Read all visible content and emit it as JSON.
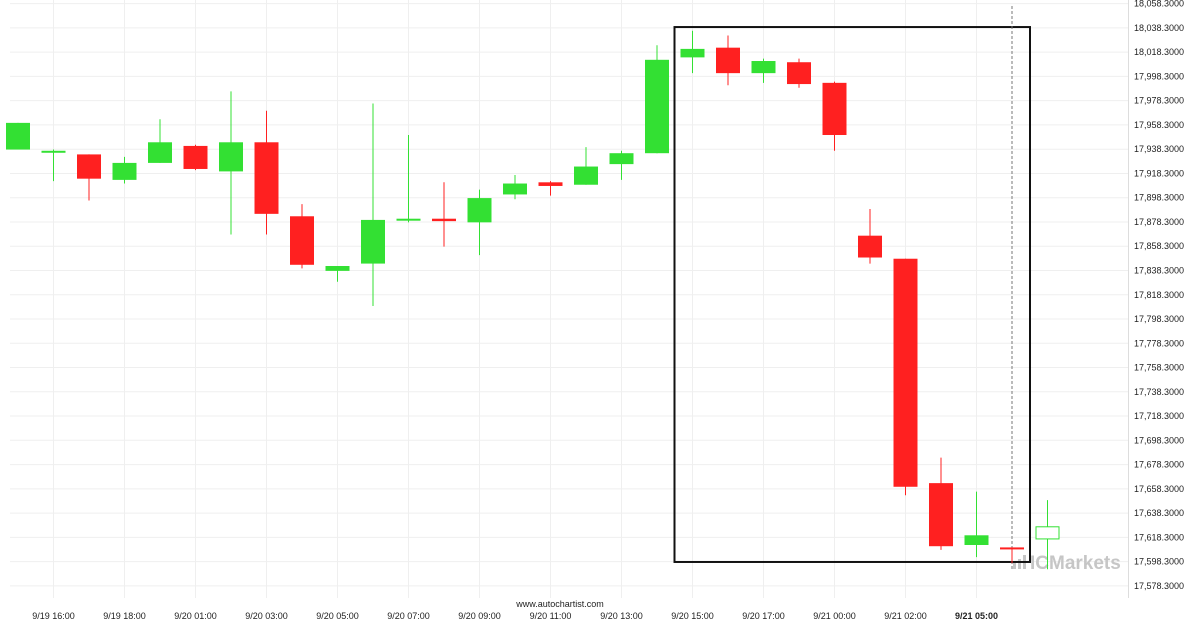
{
  "chart_data": {
    "type": "candlestick",
    "instrument": "",
    "y_range": [
      17568.3,
      18061.3
    ],
    "y_ticks": [
      "18,058.3000",
      "18,038.3000",
      "18,018.3000",
      "17,998.3000",
      "17,978.3000",
      "17,958.3000",
      "17,938.3000",
      "17,918.3000",
      "17,898.3000",
      "17,878.3000",
      "17,858.3000",
      "17,838.3000",
      "17,818.3000",
      "17,798.3000",
      "17,778.3000",
      "17,758.3000",
      "17,738.3000",
      "17,718.3000",
      "17,698.3000",
      "17,678.3000",
      "17,658.3000",
      "17,638.3000",
      "17,618.3000",
      "17,598.3000",
      "17,578.3000"
    ],
    "x_ticks": [
      {
        "label": "9/19 16:00",
        "index": 1,
        "bold": false
      },
      {
        "label": "9/19 18:00",
        "index": 3,
        "bold": false
      },
      {
        "label": "9/20 01:00",
        "index": 5,
        "bold": false
      },
      {
        "label": "9/20 03:00",
        "index": 7,
        "bold": false
      },
      {
        "label": "9/20 05:00",
        "index": 9,
        "bold": false
      },
      {
        "label": "9/20 07:00",
        "index": 11,
        "bold": false
      },
      {
        "label": "9/20 09:00",
        "index": 13,
        "bold": false
      },
      {
        "label": "9/20 11:00",
        "index": 15,
        "bold": false
      },
      {
        "label": "9/20 13:00",
        "index": 17,
        "bold": false
      },
      {
        "label": "9/20 15:00",
        "index": 19,
        "bold": false
      },
      {
        "label": "9/20 17:00",
        "index": 21,
        "bold": false
      },
      {
        "label": "9/21 00:00",
        "index": 23,
        "bold": false
      },
      {
        "label": "9/21 02:00",
        "index": 25,
        "bold": false
      },
      {
        "label": "9/21 05:00",
        "index": 27,
        "bold": true
      }
    ],
    "candles": [
      {
        "o": 17938.0,
        "h": 17960.0,
        "l": 17938.0,
        "c": 17960.0
      },
      {
        "o": 17936.0,
        "h": 17938.0,
        "l": 17912.0,
        "c": 17937.0
      },
      {
        "o": 17934.0,
        "h": 17934.0,
        "l": 17896.0,
        "c": 17914.0
      },
      {
        "o": 17913.0,
        "h": 17932.0,
        "l": 17910.0,
        "c": 17927.0
      },
      {
        "o": 17927.0,
        "h": 17963.0,
        "l": 17927.0,
        "c": 17944.0
      },
      {
        "o": 17941.0,
        "h": 17942.0,
        "l": 17921.0,
        "c": 17922.0
      },
      {
        "o": 17920.0,
        "h": 17986.0,
        "l": 17868.0,
        "c": 17944.0
      },
      {
        "o": 17944.0,
        "h": 17970.0,
        "l": 17868.0,
        "c": 17885.0
      },
      {
        "o": 17883.0,
        "h": 17893.0,
        "l": 17840.0,
        "c": 17843.0
      },
      {
        "o": 17838.0,
        "h": 17842.0,
        "l": 17829.0,
        "c": 17842.0
      },
      {
        "o": 17844.0,
        "h": 17976.0,
        "l": 17809.0,
        "c": 17880.0
      },
      {
        "o": 17880.0,
        "h": 17950.0,
        "l": 17878.0,
        "c": 17881.0
      },
      {
        "o": 17881.0,
        "h": 17911.0,
        "l": 17858.0,
        "c": 17879.0
      },
      {
        "o": 17878.0,
        "h": 17905.0,
        "l": 17851.0,
        "c": 17898.0
      },
      {
        "o": 17901.0,
        "h": 17917.0,
        "l": 17897.0,
        "c": 17910.0
      },
      {
        "o": 17911.0,
        "h": 17912.0,
        "l": 17900.0,
        "c": 17908.0
      },
      {
        "o": 17909.0,
        "h": 17940.0,
        "l": 17909.0,
        "c": 17924.0
      },
      {
        "o": 17926.0,
        "h": 17937.0,
        "l": 17913.0,
        "c": 17935.0
      },
      {
        "o": 17935.0,
        "h": 18024.0,
        "l": 17935.0,
        "c": 18012.0
      },
      {
        "o": 18014.0,
        "h": 18036.0,
        "l": 18001.0,
        "c": 18021.0
      },
      {
        "o": 18022.0,
        "h": 18032.0,
        "l": 17991.0,
        "c": 18001.0
      },
      {
        "o": 18001.0,
        "h": 18013.0,
        "l": 17993.0,
        "c": 18011.0
      },
      {
        "o": 18010.0,
        "h": 18013.0,
        "l": 17989.0,
        "c": 17992.0
      },
      {
        "o": 17993.0,
        "h": 17994.0,
        "l": 17937.0,
        "c": 17950.0
      },
      {
        "o": 17867.0,
        "h": 17889.0,
        "l": 17844.0,
        "c": 17849.0
      },
      {
        "o": 17848.0,
        "h": 17848.0,
        "l": 17653.0,
        "c": 17660.0
      },
      {
        "o": 17663.0,
        "h": 17684.0,
        "l": 17608.0,
        "c": 17611.0
      },
      {
        "o": 17612.0,
        "h": 17656.0,
        "l": 17602.0,
        "c": 17620.0
      },
      {
        "o": 17610.0,
        "h": 17610.0,
        "l": 17597.0,
        "c": 17609.0
      },
      {
        "o": 17617.0,
        "h": 17649.0,
        "l": 17592.0,
        "c": 17627.0
      }
    ],
    "grid": true,
    "highlight_box": {
      "start_index": 19,
      "end_index": 28,
      "top": 18039.0,
      "bottom": 17598.0
    },
    "current_time_index": 28,
    "colors": {
      "up": "#33e033",
      "down": "#ff2020",
      "current": "#ffffff",
      "current_border": "#33e033",
      "grid": "#efefef",
      "box": "#111111"
    }
  },
  "credit": "www.autochartist.com",
  "watermark": "ICMarkets"
}
